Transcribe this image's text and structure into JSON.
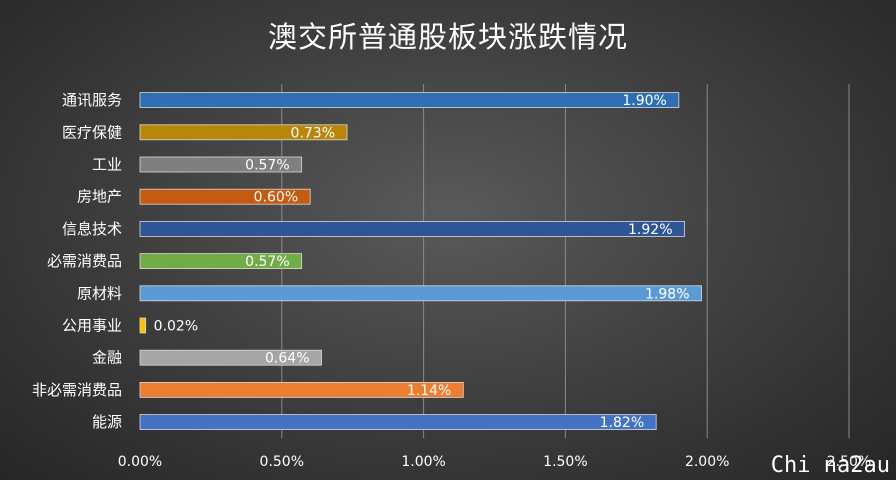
{
  "chart_data": {
    "type": "bar",
    "orientation": "horizontal",
    "title": "澳交所普通股板块涨跌情况",
    "categories": [
      "通讯服务",
      "医疗保健",
      "工业",
      "房地产",
      "信息技术",
      "必需消费品",
      "原材料",
      "公用事业",
      "金融",
      "非必需消费品",
      "能源"
    ],
    "values": [
      1.9,
      0.73,
      0.57,
      0.6,
      1.92,
      0.57,
      1.98,
      0.02,
      0.64,
      1.14,
      1.82
    ],
    "value_labels": [
      "1.90%",
      "0.73%",
      "0.57%",
      "0.60%",
      "1.92%",
      "0.57%",
      "1.98%",
      "0.02%",
      "0.64%",
      "1.14%",
      "1.82%"
    ],
    "colors": [
      "#2e6fb3",
      "#b8860b",
      "#7f7f7f",
      "#c55a11",
      "#2f5597",
      "#70ad47",
      "#5b9bd5",
      "#ffc000",
      "#a5a5a5",
      "#ed7d31",
      "#4472c4"
    ],
    "x_ticks": [
      0,
      0.5,
      1.0,
      1.5,
      2.0,
      2.5
    ],
    "x_tick_labels": [
      "0.00%",
      "0.50%",
      "1.00%",
      "1.50%",
      "2.00%",
      "2.50%"
    ],
    "xlim": [
      0,
      2.5
    ],
    "grid": "vertical",
    "legend": "none"
  },
  "watermark": "Chi na2au"
}
